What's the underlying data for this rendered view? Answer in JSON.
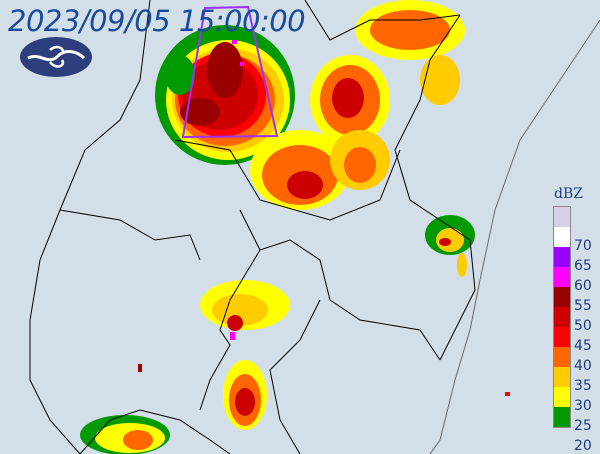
{
  "timestamp": "2023/09/05 15:00:00",
  "logo": "cwb-logo",
  "warning_polygon_color": "#9b30ff",
  "legend": {
    "unit": "dBZ",
    "levels": [
      {
        "label": "",
        "color": "#d6cfe8"
      },
      {
        "label": "70",
        "color": "#ffffff"
      },
      {
        "label": "65",
        "color": "#9900ff"
      },
      {
        "label": "60",
        "color": "#ff00ff"
      },
      {
        "label": "55",
        "color": "#990000"
      },
      {
        "label": "50",
        "color": "#cc0000"
      },
      {
        "label": "45",
        "color": "#ff0000"
      },
      {
        "label": "40",
        "color": "#ff6600"
      },
      {
        "label": "35",
        "color": "#ffcc00"
      },
      {
        "label": "30",
        "color": "#ffff00"
      },
      {
        "label": "25",
        "color": "#009900"
      }
    ],
    "bottom_label": "20"
  }
}
